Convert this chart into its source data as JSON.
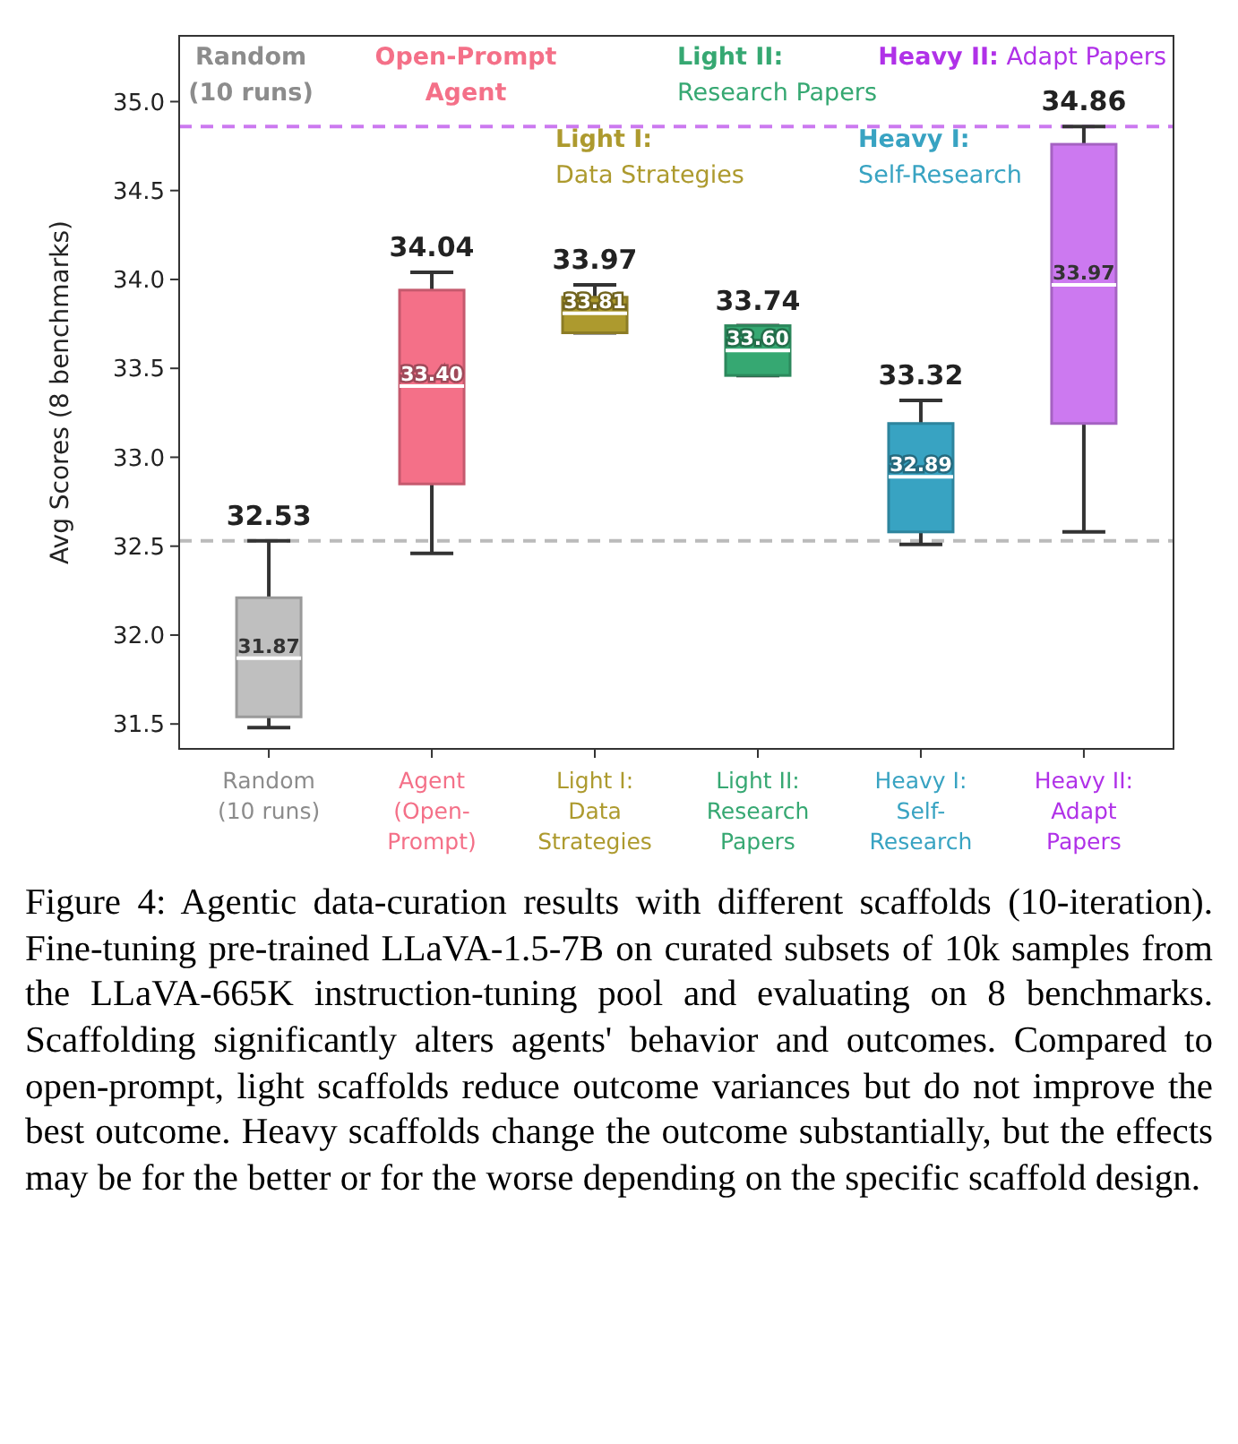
{
  "chart_data": {
    "type": "box",
    "ylabel": "Avg Scores (8 benchmarks)",
    "categories": [
      "Random\n(10 runs)",
      "Agent\n(Open-\nPrompt)",
      "Light I:\nData\nStrategies",
      "Light II:\nResearch\nPapers",
      "Heavy I:\nSelf-\nResearch",
      "Heavy II:\nAdapt\nPapers"
    ],
    "colors": [
      "#bfbfbf",
      "#f47088",
      "#ad9a2e",
      "#36a872",
      "#38a3c2",
      "#cc79f0"
    ],
    "boxes": [
      {
        "low": 31.48,
        "q1": 31.54,
        "median": 31.87,
        "q3": 32.21,
        "high": 32.53
      },
      {
        "low": 32.46,
        "q1": 32.85,
        "median": 33.4,
        "q3": 33.94,
        "high": 34.04
      },
      {
        "low": 33.7,
        "q1": 33.7,
        "median": 33.81,
        "q3": 33.9,
        "high": 33.97
      },
      {
        "low": 33.46,
        "q1": 33.46,
        "median": 33.6,
        "q3": 33.74,
        "high": 33.74
      },
      {
        "low": 32.51,
        "q1": 32.58,
        "median": 32.89,
        "q3": 33.19,
        "high": 33.32
      },
      {
        "low": 32.58,
        "q1": 33.19,
        "median": 33.97,
        "q3": 34.76,
        "high": 34.86
      }
    ],
    "ylim": [
      31.36,
      35.37
    ],
    "yticks": [
      {
        "value": 31.5,
        "label": "31.5"
      },
      {
        "value": 32,
        "label": "32.0"
      },
      {
        "value": 32.5,
        "label": "32.5"
      },
      {
        "value": 33,
        "label": "33.0"
      },
      {
        "value": 33.5,
        "label": "33.5"
      },
      {
        "value": 34,
        "label": "34.0"
      },
      {
        "value": 34.5,
        "label": "34.5"
      },
      {
        "value": 35,
        "label": "35.0"
      }
    ],
    "ref_lines": [
      {
        "axis": "y",
        "value": 34.86,
        "color": "#cc79f0",
        "line_style": "dashed"
      },
      {
        "axis": "y",
        "value": 32.53,
        "color": "#bbbbbb",
        "line_style": "dashed"
      }
    ],
    "annotations": [
      "Random\n(10 runs)",
      "Open-Prompt\nAgent",
      "Light I:\nData Strategies",
      "Light II:\nResearch Papers",
      "Heavy I:\nSelf-Research",
      "Heavy II: Adapt Papers",
      {
        "text": "32.53",
        "x": "Random\n(10 runs)",
        "y": 32.53
      },
      {
        "text": "31.87",
        "x": "Random\n(10 runs)",
        "y": 31.87
      },
      {
        "text": "34.04",
        "x": "Agent\n(Open-\nPrompt)",
        "y": 34.04
      },
      {
        "text": "33.40",
        "x": "Agent\n(Open-\nPrompt)",
        "y": 33.4
      },
      {
        "text": "33.97",
        "x": "Light I:\nData\nStrategies",
        "y": 33.97
      },
      {
        "text": "33.81",
        "x": "Light I:\nData\nStrategies",
        "y": 33.81
      },
      {
        "text": "33.74",
        "x": "Light II:\nResearch\nPapers",
        "y": 33.74
      },
      {
        "text": "33.60",
        "x": "Light II:\nResearch\nPapers",
        "y": 33.6
      },
      {
        "text": "33.32",
        "x": "Heavy I:\nSelf-\nResearch",
        "y": 33.32
      },
      {
        "text": "32.89",
        "x": "Heavy I:\nSelf-\nResearch",
        "y": 32.89
      },
      {
        "text": "34.86",
        "x": "Heavy II:\nAdapt\nPapers",
        "y": 34.86
      },
      {
        "text": "33.97",
        "x": "Heavy II:\nAdapt\nPapers",
        "y": 33.97
      },
      "Figure 4:  Agentic data-curation results with different scaffolds (10-iteration). Fine-tuning pre-trained LLaVA-1.5-7B on curated subsets of 10k samples from the LLaVA-665K instruction-tuning pool and evaluating on 8 benchmarks. Scaffolding significantly alters agents' behavior and outcomes. Compared to open-prompt, light scaffolds reduce outcome variances but do not improve the best outcome. Heavy scaffolds change the outcome substantially, but the effects may be for the better or for the worse depending on the specific scaffold design."
    ]
  }
}
